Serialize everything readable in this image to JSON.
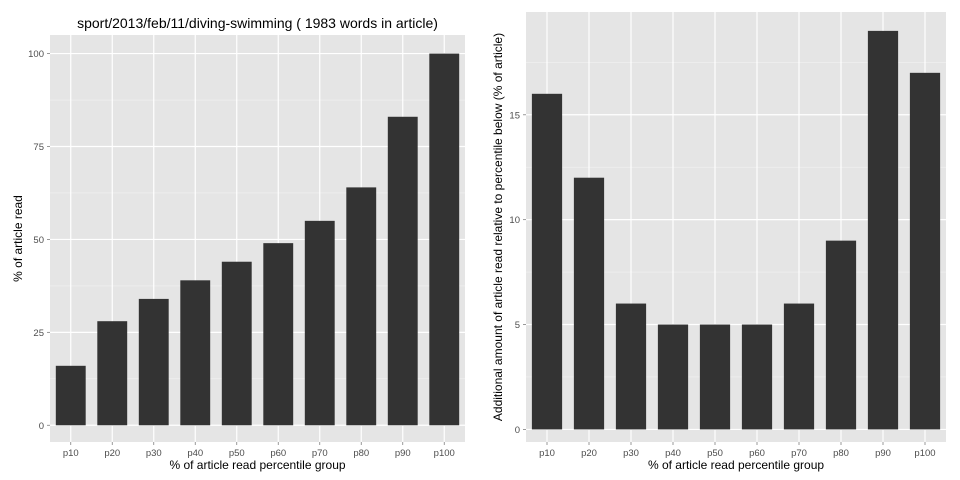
{
  "chart_data": [
    {
      "type": "bar",
      "title": "sport/2013/feb/11/diving-swimming ( 1983 words in article)",
      "xlabel": "% of article read percentile group",
      "ylabel": "% of article read",
      "categories": [
        "p10",
        "p20",
        "p30",
        "p40",
        "p50",
        "p60",
        "p70",
        "p80",
        "p90",
        "p100"
      ],
      "values": [
        16,
        28,
        34,
        39,
        44,
        49,
        55,
        64,
        83,
        100
      ],
      "ylim": [
        -4.5,
        105
      ],
      "yticks": [
        0,
        25,
        50,
        75,
        100
      ],
      "grid": true,
      "bar_color": "#333333",
      "panel_color": "#e5e5e5"
    },
    {
      "type": "bar",
      "title": "",
      "xlabel": "% of article read percentile group",
      "ylabel": "Additional amount of article read relative to percentile below (% of article)",
      "categories": [
        "p10",
        "p20",
        "p30",
        "p40",
        "p50",
        "p60",
        "p70",
        "p80",
        "p90",
        "p100"
      ],
      "values": [
        16,
        12,
        6,
        5,
        5,
        5,
        6,
        9,
        19,
        17
      ],
      "ylim": [
        -0.6,
        19.9
      ],
      "yticks": [
        0,
        5,
        10,
        15
      ],
      "grid": true,
      "bar_color": "#333333",
      "panel_color": "#e5e5e5"
    }
  ]
}
